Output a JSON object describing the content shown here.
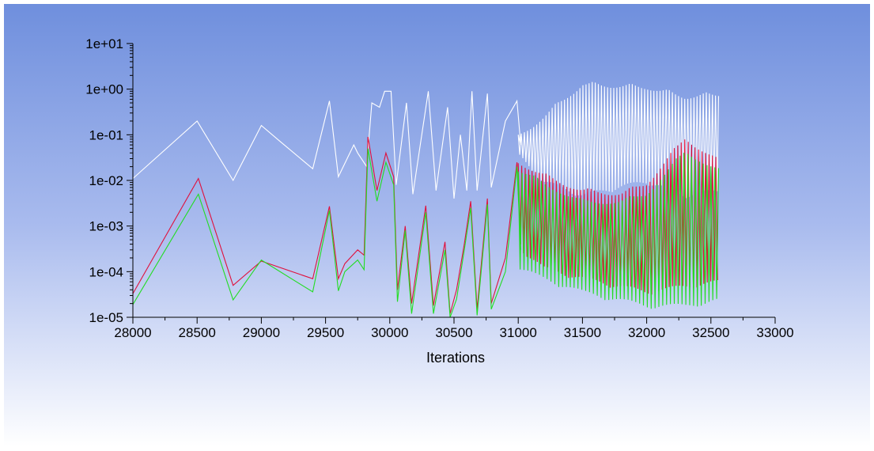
{
  "chart_data": {
    "type": "line",
    "xlabel": "Iterations",
    "ylabel": "",
    "title": "",
    "xlim": [
      28000,
      33000
    ],
    "ylim": [
      1e-05,
      10
    ],
    "y_scale": "log",
    "x_ticks": [
      "28000",
      "28500",
      "29000",
      "29500",
      "30000",
      "30500",
      "31000",
      "31500",
      "32000",
      "32500",
      "33000"
    ],
    "y_ticks": [
      "1e-05",
      "1e-04",
      "1e-03",
      "1e-02",
      "1e-01",
      "1e+00",
      "1e+01"
    ],
    "grid": false,
    "legend": "none",
    "series": [
      {
        "color": "#ffffff",
        "points": [
          [
            28000,
            0.011
          ],
          [
            28500,
            0.2
          ],
          [
            28780,
            0.01
          ],
          [
            29000,
            0.16
          ],
          [
            29150,
            0.07
          ],
          [
            29400,
            0.018
          ],
          [
            29530,
            0.55
          ],
          [
            29600,
            0.012
          ],
          [
            29720,
            0.06
          ],
          [
            29750,
            0.04
          ],
          [
            29820,
            0.02
          ],
          [
            29860,
            0.5
          ],
          [
            29920,
            0.4
          ],
          [
            29960,
            0.9
          ],
          [
            30010,
            0.9
          ],
          [
            30050,
            0.008
          ],
          [
            30130,
            0.5
          ],
          [
            30180,
            0.005
          ],
          [
            30300,
            0.9
          ],
          [
            30360,
            0.006
          ],
          [
            30450,
            0.4
          ],
          [
            30500,
            0.004
          ],
          [
            30550,
            0.1
          ],
          [
            30600,
            0.006
          ],
          [
            30640,
            0.9
          ],
          [
            30680,
            0.006
          ],
          [
            30760,
            0.8
          ],
          [
            30790,
            0.007
          ],
          [
            30900,
            0.2
          ],
          [
            30990,
            0.55
          ],
          [
            31020,
            0.06
          ]
        ],
        "band": {
          "x_start": 31000,
          "x_end": 32560,
          "upper": [
            [
              31000,
              0.1
            ],
            [
              31200,
              0.3
            ],
            [
              31500,
              1.5
            ],
            [
              32000,
              1.3
            ],
            [
              32300,
              0.8
            ],
            [
              32560,
              0.9
            ]
          ],
          "lower": [
            [
              31000,
              0.03
            ],
            [
              31200,
              0.008
            ],
            [
              31500,
              0.004
            ],
            [
              32000,
              0.008
            ],
            [
              32300,
              0.004
            ],
            [
              32560,
              0.005
            ]
          ]
        }
      },
      {
        "color": "#e0103c",
        "points": [
          [
            28000,
            3.3e-05
          ],
          [
            28510,
            0.011
          ],
          [
            28780,
            5e-05
          ],
          [
            29000,
            0.00017
          ],
          [
            29400,
            7e-05
          ],
          [
            29530,
            0.0027
          ],
          [
            29600,
            7e-05
          ],
          [
            29650,
            0.00015
          ],
          [
            29750,
            0.0003
          ],
          [
            29800,
            0.00023
          ],
          [
            29830,
            0.09
          ],
          [
            29900,
            0.006
          ],
          [
            29970,
            0.04
          ],
          [
            30030,
            0.012
          ],
          [
            30060,
            4e-05
          ],
          [
            30120,
            0.001
          ],
          [
            30170,
            2e-05
          ],
          [
            30280,
            0.0028
          ],
          [
            30340,
            1.8e-05
          ],
          [
            30430,
            0.00045
          ],
          [
            30470,
            1.2e-05
          ],
          [
            30520,
            4e-05
          ],
          [
            30580,
            0.0004
          ],
          [
            30630,
            0.0035
          ],
          [
            30680,
            1.5e-05
          ],
          [
            30760,
            0.004
          ],
          [
            30790,
            2e-05
          ],
          [
            30900,
            0.0002
          ],
          [
            30990,
            0.025
          ],
          [
            31020,
            0.0004
          ]
        ],
        "band": {
          "x_start": 31000,
          "x_end": 32560,
          "upper": [
            [
              31000,
              0.03
            ],
            [
              31200,
              0.015
            ],
            [
              31500,
              0.007
            ],
            [
              31800,
              0.006
            ],
            [
              32000,
              0.01
            ],
            [
              32300,
              0.1
            ],
            [
              32560,
              0.03
            ]
          ],
          "lower": [
            [
              31000,
              0.0003
            ],
            [
              31200,
              0.0001
            ],
            [
              31500,
              6e-05
            ],
            [
              32000,
              3e-05
            ],
            [
              32300,
              4e-05
            ],
            [
              32560,
              5e-05
            ]
          ]
        }
      },
      {
        "color": "#22dd22",
        "points": [
          [
            28000,
            1.9e-05
          ],
          [
            28510,
            0.005
          ],
          [
            28780,
            2.4e-05
          ],
          [
            29000,
            0.00018
          ],
          [
            29400,
            3.6e-05
          ],
          [
            29530,
            0.0022
          ],
          [
            29600,
            3.8e-05
          ],
          [
            29650,
            0.0001
          ],
          [
            29750,
            0.00018
          ],
          [
            29800,
            0.00011
          ],
          [
            29830,
            0.05
          ],
          [
            29900,
            0.0035
          ],
          [
            29970,
            0.025
          ],
          [
            30030,
            0.008
          ],
          [
            30060,
            2.2e-05
          ],
          [
            30120,
            0.0008
          ],
          [
            30170,
            1.2e-05
          ],
          [
            30280,
            0.002
          ],
          [
            30340,
            1.2e-05
          ],
          [
            30430,
            0.0003
          ],
          [
            30470,
            1e-05
          ],
          [
            30520,
            2.5e-05
          ],
          [
            30580,
            0.0003
          ],
          [
            30630,
            0.0025
          ],
          [
            30680,
            1.1e-05
          ],
          [
            30760,
            0.003
          ],
          [
            30790,
            1.5e-05
          ],
          [
            30900,
            0.0001
          ],
          [
            30990,
            0.02
          ],
          [
            31020,
            0.0003
          ]
        ],
        "band": {
          "x_start": 31000,
          "x_end": 32560,
          "upper": [
            [
              31000,
              0.02
            ],
            [
              31200,
              0.01
            ],
            [
              31500,
              0.004
            ],
            [
              31800,
              0.004
            ],
            [
              32000,
              0.006
            ],
            [
              32300,
              0.05
            ],
            [
              32560,
              0.02
            ]
          ],
          "lower": [
            [
              31000,
              0.0001
            ],
            [
              31200,
              6e-05
            ],
            [
              31500,
              3e-05
            ],
            [
              32000,
              1.5e-05
            ],
            [
              32300,
              1.5e-05
            ],
            [
              32560,
              2e-05
            ]
          ]
        }
      }
    ]
  }
}
